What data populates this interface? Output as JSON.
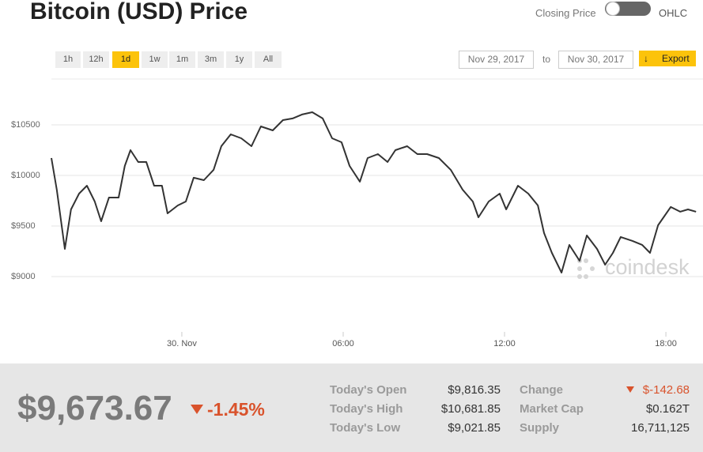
{
  "header": {
    "title": "Bitcoin (USD) Price",
    "toggle_left": "Closing Price",
    "toggle_right": "OHLC"
  },
  "controls": {
    "ranges": [
      "1h",
      "12h",
      "1d",
      "1w",
      "1m",
      "3m",
      "1y",
      "All"
    ],
    "active": "1d",
    "from": "Nov 29, 2017",
    "to_label": "to",
    "to": "Nov 30, 2017",
    "export": "Export"
  },
  "chart_data": {
    "type": "line",
    "color": "#333333",
    "watermark": "coindesk",
    "x": [
      -4.85,
      -4.65,
      -4.35,
      -4.12,
      -3.82,
      -3.53,
      -3.24,
      -3.0,
      -2.71,
      -2.35,
      -2.12,
      -1.91,
      -1.62,
      -1.32,
      -1.03,
      -0.74,
      -0.53,
      -0.15,
      0.15,
      0.44,
      0.82,
      1.18,
      1.47,
      1.82,
      2.21,
      2.59,
      2.94,
      3.38,
      3.76,
      4.12,
      4.47,
      4.85,
      5.24,
      5.59,
      5.94,
      6.24,
      6.62,
      6.91,
      7.29,
      7.65,
      7.94,
      8.38,
      8.76,
      9.12,
      9.56,
      10.0,
      10.44,
      10.82,
      11.03,
      11.41,
      11.82,
      12.06,
      12.5,
      12.88,
      13.24,
      13.47,
      13.76,
      14.12,
      14.41,
      14.79,
      15.06,
      15.44,
      15.74,
      16.03,
      16.32,
      16.76,
      17.12,
      17.41,
      17.71,
      18.18,
      18.53,
      18.82,
      19.12
    ],
    "values": [
      10172,
      9859,
      9273,
      9664,
      9820,
      9898,
      9742,
      9547,
      9781,
      9781,
      10094,
      10250,
      10133,
      10133,
      9898,
      9898,
      9625,
      9703,
      9742,
      9977,
      9953,
      10055,
      10289,
      10406,
      10367,
      10289,
      10484,
      10445,
      10547,
      10563,
      10602,
      10625,
      10563,
      10367,
      10328,
      10094,
      9938,
      10172,
      10211,
      10133,
      10250,
      10289,
      10211,
      10211,
      10172,
      10055,
      9859,
      9742,
      9586,
      9742,
      9820,
      9664,
      9898,
      9820,
      9703,
      9430,
      9234,
      9039,
      9313,
      9156,
      9406,
      9273,
      9117,
      9234,
      9391,
      9352,
      9313,
      9234,
      9508,
      9688,
      9641,
      9664,
      9641
    ],
    "xlim": [
      -4.85,
      19.38
    ],
    "xticks": [
      {
        "value": 0,
        "label": "30. Nov"
      },
      {
        "value": 6,
        "label": "06:00"
      },
      {
        "value": 12,
        "label": "12:00"
      },
      {
        "value": 18,
        "label": "18:00"
      }
    ],
    "ylim": [
      8453,
      10953
    ],
    "yticks": [
      {
        "value": 9000,
        "label": "$9000"
      },
      {
        "value": 9500,
        "label": "$9500"
      },
      {
        "value": 10000,
        "label": "$10000"
      },
      {
        "value": 10500,
        "label": "$10500"
      }
    ],
    "grid": true
  },
  "summary": {
    "price": "$9,673.67",
    "change_pct": "-1.45%",
    "rows": [
      [
        "Today's Open",
        "$9,816.35",
        "Change",
        "$-142.68"
      ],
      [
        "Today's High",
        "$10,681.85",
        "Market Cap",
        "$0.162T"
      ],
      [
        "Today's Low",
        "$9,021.85",
        "Supply",
        "16,711,125"
      ]
    ]
  }
}
